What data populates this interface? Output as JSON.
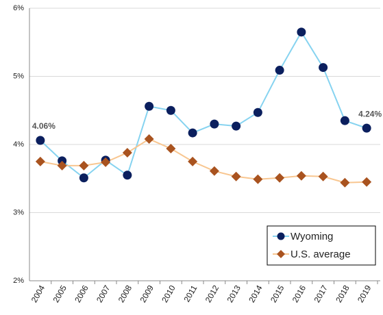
{
  "chart_data": {
    "type": "line",
    "categories": [
      "2004",
      "2005",
      "2006",
      "2007",
      "2008",
      "2009",
      "2010",
      "2011",
      "2012",
      "2013",
      "2014",
      "2015",
      "2016",
      "2017",
      "2018",
      "2019"
    ],
    "series": [
      {
        "name": "Wyoming",
        "color": "#0b1f5e",
        "line_color": "#86d3f0",
        "marker": "circle",
        "values": [
          4.06,
          3.76,
          3.51,
          3.77,
          3.55,
          4.56,
          4.5,
          4.17,
          4.3,
          4.27,
          4.47,
          5.09,
          5.65,
          5.13,
          4.35,
          4.24
        ],
        "value_labels": [
          "4.06%",
          null,
          null,
          null,
          null,
          null,
          null,
          null,
          null,
          null,
          null,
          null,
          null,
          null,
          null,
          "4.24%"
        ]
      },
      {
        "name": "U.S. average",
        "color": "#a9531f",
        "line_color": "#f8c690",
        "marker": "diamond",
        "values": [
          3.75,
          3.69,
          3.69,
          3.74,
          3.88,
          4.08,
          3.94,
          3.75,
          3.61,
          3.53,
          3.49,
          3.51,
          3.54,
          3.53,
          3.44,
          3.45
        ]
      }
    ],
    "ylim": [
      2,
      6
    ],
    "yticks": [
      {
        "value": 2,
        "label": "2%"
      },
      {
        "value": 3,
        "label": "3%"
      },
      {
        "value": 4,
        "label": "4%"
      },
      {
        "value": 5,
        "label": "5%"
      },
      {
        "value": 6,
        "label": "6%"
      }
    ],
    "grid": true,
    "legend": "lower right"
  }
}
